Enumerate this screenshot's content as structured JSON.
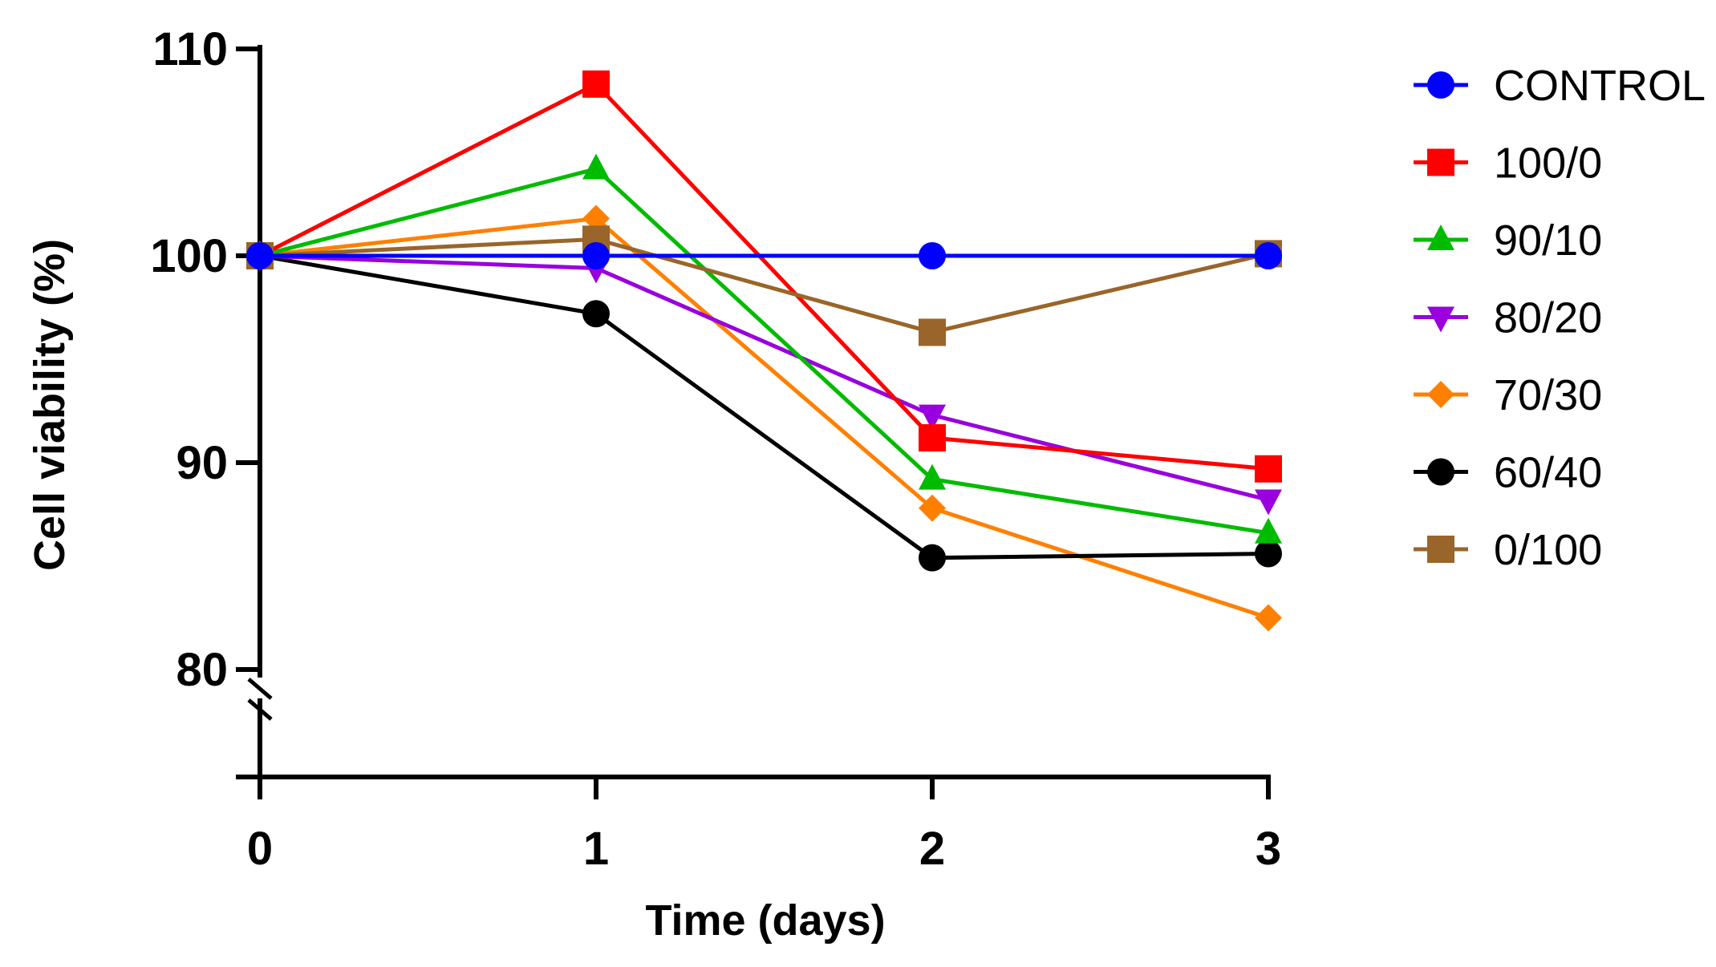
{
  "chart_data": {
    "type": "line",
    "title": "",
    "xlabel": "Time (days)",
    "ylabel": "Cell viability (%)",
    "x": [
      0,
      1,
      2,
      3
    ],
    "x_tick_labels": [
      "0",
      "1",
      "2",
      "3"
    ],
    "y_ticks": [
      80,
      90,
      100,
      110
    ],
    "y_tick_labels": [
      "80",
      "90",
      "100",
      "110"
    ],
    "ylim": [
      74.6,
      110
    ],
    "y_axis_break_at": 80,
    "grid": false,
    "legend_position": "right",
    "series": [
      {
        "name": "CONTROL",
        "color": "#0000ff",
        "marker": "circle",
        "values": [
          100,
          100,
          100,
          100
        ]
      },
      {
        "name": "100/0",
        "color": "#ff0000",
        "marker": "square",
        "values": [
          100,
          108.3,
          91.2,
          89.7
        ]
      },
      {
        "name": "90/10",
        "color": "#00bb00",
        "marker": "triangle-up",
        "values": [
          100,
          104.2,
          89.2,
          86.6
        ]
      },
      {
        "name": "80/20",
        "color": "#9900dd",
        "marker": "triangle-down",
        "values": [
          100,
          99.4,
          92.3,
          88.2
        ]
      },
      {
        "name": "70/30",
        "color": "#ff8000",
        "marker": "diamond",
        "values": [
          100,
          101.8,
          87.8,
          82.5
        ]
      },
      {
        "name": "60/40",
        "color": "#000000",
        "marker": "circle",
        "values": [
          100,
          97.2,
          85.4,
          85.6
        ]
      },
      {
        "name": "0/100",
        "color": "#99652a",
        "marker": "square",
        "values": [
          100,
          100.8,
          96.3,
          100.1
        ]
      }
    ]
  }
}
